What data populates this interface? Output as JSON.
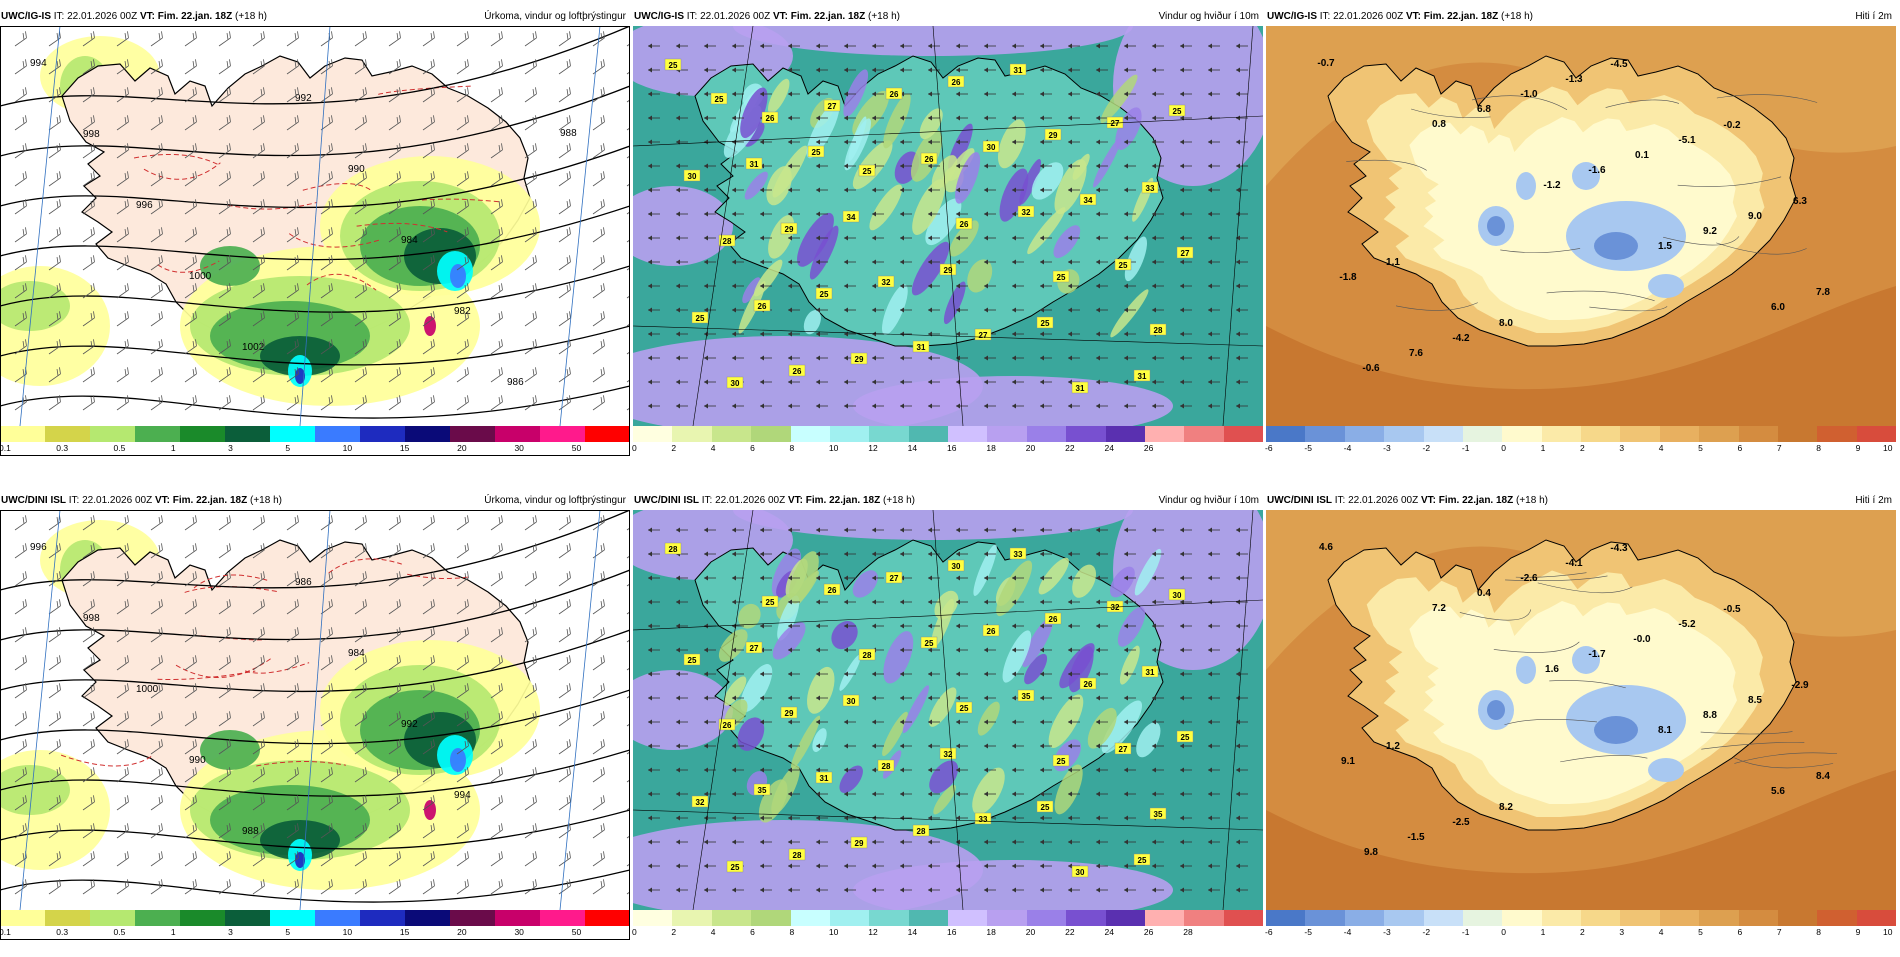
{
  "panels": [
    {
      "id": "r1c1",
      "model": "UWC/IG-IS",
      "it_label": "IT:",
      "it": "22.01.2026 00Z",
      "vt_label": "VT:",
      "vt": "Fim. 22.jan. 18Z",
      "lead": "(+18 h)",
      "title": "Úrkoma, vindur og loftþrýstingur",
      "colorbar": {
        "colors": [
          "#ffff99",
          "#d4d44a",
          "#b5e870",
          "#4caf50",
          "#1a8a2a",
          "#0b5e3a",
          "#00ffff",
          "#3a7bff",
          "#1e2bbf",
          "#0a0a78",
          "#6a0b4a",
          "#c8006a",
          "#ff1a8c",
          "#ff0000"
        ],
        "ticks": [
          "0.1",
          "0.3",
          "0.5",
          "1",
          "3",
          "5",
          "10",
          "15",
          "20",
          "30",
          "50"
        ]
      },
      "isobars": [
        "994",
        "998",
        "996",
        "1000",
        "1002",
        "992",
        "990",
        "984",
        "982",
        "986",
        "988"
      ],
      "labels": []
    },
    {
      "id": "r1c2",
      "model": "UWC/IG-IS",
      "it_label": "IT:",
      "it": "22.01.2026 00Z",
      "vt_label": "VT:",
      "vt": "Fim. 22.jan. 18Z",
      "lead": "(+18 h)",
      "title": "Vindur og hviður í 10m",
      "colorbar": {
        "colors": [
          "#ffffe0",
          "#e8f5b0",
          "#c8e68c",
          "#b0d77a",
          "#c8ffff",
          "#a0f0f0",
          "#78d8d0",
          "#50b8b0",
          "#d0c0ff",
          "#b8a0f0",
          "#9a80e8",
          "#7850d0",
          "#5a30b0",
          "#ffb0b0",
          "#f08080",
          "#e05050"
        ],
        "ticks": [
          "0",
          "2",
          "4",
          "6",
          "8",
          "10",
          "12",
          "14",
          "16",
          "18",
          "20",
          "22",
          "24",
          "26"
        ]
      },
      "labels": [
        "25",
        "26",
        "25",
        "26",
        "25",
        "28",
        "30",
        "27",
        "26",
        "32",
        "25",
        "25",
        "26",
        "26",
        "30",
        "34",
        "27",
        "26",
        "29",
        "26",
        "29",
        "33",
        "28",
        "25",
        "31",
        "31",
        "27",
        "30",
        "29",
        "32",
        "27",
        "31",
        "25",
        "31",
        "34",
        "29",
        "25",
        "31",
        "25",
        "25"
      ]
    },
    {
      "id": "r1c3",
      "model": "UWC/IG-IS",
      "it_label": "IT:",
      "it": "22.01.2026 00Z",
      "vt_label": "VT:",
      "vt": "Fim. 22.jan. 18Z",
      "lead": "(+18 h)",
      "title": "Hiti í 2m",
      "colorbar": {
        "colors": [
          "#4a78c8",
          "#6a92d8",
          "#8aaee6",
          "#a8c8f0",
          "#c8e0f8",
          "#e6f4e0",
          "#fffacd",
          "#fbeaa8",
          "#f6d88a",
          "#f0c474",
          "#e8b060",
          "#dda050",
          "#d48c40",
          "#c87830",
          "#d06030",
          "#d84c3c"
        ],
        "ticks": [
          "-6",
          "-5",
          "-4",
          "-3",
          "-2",
          "-1",
          "0",
          "1",
          "2",
          "3",
          "4",
          "5",
          "6",
          "7",
          "8",
          "9",
          "10"
        ]
      },
      "labels": [
        "-0.7",
        "0.8",
        "-1.2",
        "1.5",
        "6.0",
        "-0.6",
        "6.8",
        "-1.6",
        "9.2",
        "7.8",
        "7.6",
        "-1.0",
        "0.1",
        "9.0",
        "-1.8",
        "-4.2",
        "-1.3",
        "-5.1",
        "6.3",
        "1.1",
        "8.0",
        "-4.5",
        "-0.2"
      ]
    },
    {
      "id": "r2c1",
      "model": "UWC/DINI ISL",
      "it_label": "IT:",
      "it": "22.01.2026 00Z",
      "vt_label": "VT:",
      "vt": "Fim. 22.jan. 18Z",
      "lead": "(+18 h)",
      "title": "Úrkoma, vindur og loftþrýstingur",
      "colorbar": {
        "colors": [
          "#ffff99",
          "#d4d44a",
          "#b5e870",
          "#4caf50",
          "#1a8a2a",
          "#0b5e3a",
          "#00ffff",
          "#3a7bff",
          "#1e2bbf",
          "#0a0a78",
          "#6a0b4a",
          "#c8006a",
          "#ff1a8c",
          "#ff0000"
        ],
        "ticks": [
          "0.1",
          "0.3",
          "0.5",
          "1",
          "3",
          "5",
          "10",
          "15",
          "20",
          "30",
          "50"
        ]
      },
      "isobars": [
        "996",
        "998",
        "1000",
        "990",
        "988",
        "986",
        "984",
        "992",
        "994"
      ],
      "labels": []
    },
    {
      "id": "r2c2",
      "model": "UWC/DINI ISL",
      "it_label": "IT:",
      "it": "22.01.2026 00Z",
      "vt_label": "VT:",
      "vt": "Fim. 22.jan. 18Z",
      "lead": "(+18 h)",
      "title": "Vindur og hviður í 10m",
      "colorbar": {
        "colors": [
          "#ffffe0",
          "#e8f5b0",
          "#c8e68c",
          "#b0d77a",
          "#c8ffff",
          "#a0f0f0",
          "#78d8d0",
          "#50b8b0",
          "#d0c0ff",
          "#b8a0f0",
          "#9a80e8",
          "#7850d0",
          "#5a30b0",
          "#ffb0b0",
          "#f08080",
          "#e05050"
        ],
        "ticks": [
          "0",
          "2",
          "4",
          "6",
          "8",
          "10",
          "12",
          "14",
          "16",
          "18",
          "20",
          "22",
          "24",
          "26",
          "28"
        ]
      },
      "labels": [
        "28",
        "25",
        "28",
        "25",
        "25",
        "35",
        "25",
        "26",
        "25",
        "35",
        "27",
        "32",
        "28",
        "27",
        "26",
        "26",
        "25",
        "35",
        "29",
        "30",
        "26",
        "31",
        "26",
        "31",
        "28",
        "33",
        "32",
        "25",
        "29",
        "28",
        "33",
        "30",
        "30",
        "27",
        "30",
        "32",
        "25",
        "25"
      ]
    },
    {
      "id": "r2c3",
      "model": "UWC/DINI ISL",
      "it_label": "IT:",
      "it": "22.01.2026 00Z",
      "vt_label": "VT:",
      "vt": "Fim. 22.jan. 18Z",
      "lead": "(+18 h)",
      "title": "Hiti í 2m",
      "colorbar": {
        "colors": [
          "#4a78c8",
          "#6a92d8",
          "#8aaee6",
          "#a8c8f0",
          "#c8e0f8",
          "#e6f4e0",
          "#fffacd",
          "#fbeaa8",
          "#f6d88a",
          "#f0c474",
          "#e8b060",
          "#dda050",
          "#d48c40",
          "#c87830",
          "#d06030",
          "#d84c3c"
        ],
        "ticks": [
          "-6",
          "-5",
          "-4",
          "-3",
          "-2",
          "-1",
          "0",
          "1",
          "2",
          "3",
          "4",
          "5",
          "6",
          "7",
          "8",
          "9",
          "10"
        ]
      },
      "labels": [
        "4.6",
        "7.2",
        "1.6",
        "8.1",
        "5.6",
        "9.8",
        "0.4",
        "-1.7",
        "8.8",
        "8.4",
        "-1.5",
        "-2.6",
        "-0.0",
        "8.5",
        "9.1",
        "-2.5",
        "-4.1",
        "-5.2",
        "-2.9",
        "1.2",
        "8.2",
        "-4.3",
        "-0.5"
      ]
    }
  ]
}
